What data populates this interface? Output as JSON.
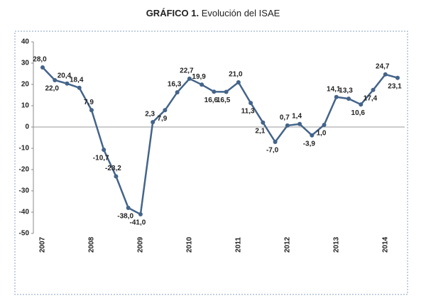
{
  "chart_data": {
    "type": "line",
    "title_number": "GRÁFICO 1.",
    "title": "Evolución del ISAE",
    "categories": [
      "2007",
      null,
      null,
      null,
      "2008",
      null,
      null,
      null,
      "2009",
      null,
      null,
      null,
      "2010",
      null,
      null,
      null,
      "2011",
      null,
      null,
      null,
      "2012",
      null,
      null,
      null,
      "2013",
      null,
      null,
      null,
      "2014",
      null
    ],
    "series": [
      {
        "name": "ISAE",
        "color": "#44648a",
        "values": [
          28.0,
          22.0,
          20.4,
          18.4,
          7.9,
          -10.7,
          -23.2,
          -38.0,
          -41.0,
          2.3,
          7.9,
          16.3,
          22.7,
          19.9,
          16.6,
          16.5,
          21.0,
          11.3,
          2.1,
          -7.0,
          0.7,
          1.4,
          -3.9,
          1.0,
          14.1,
          13.3,
          10.6,
          17.4,
          24.7,
          23.1
        ],
        "value_labels": [
          "28,0",
          "22,0",
          "20,4",
          "18,4",
          "7,9",
          "-10,7",
          "-23,2",
          "-38,0",
          "-41,0",
          "2,3",
          "7,9",
          "16,3",
          "22,7",
          "19,9",
          "16,6",
          "16,5",
          "21,0",
          "11,3",
          "2,1",
          "-7,0",
          "0,7",
          "1,4",
          "-3,9",
          "1,0",
          "14,1",
          "13,3",
          "10,6",
          "17,4",
          "24,7",
          "23,1"
        ]
      }
    ],
    "ylim": [
      -50,
      40
    ],
    "yticks": [
      -50,
      -40,
      -30,
      -20,
      -10,
      0,
      10,
      20,
      30,
      40
    ],
    "grid": false
  }
}
